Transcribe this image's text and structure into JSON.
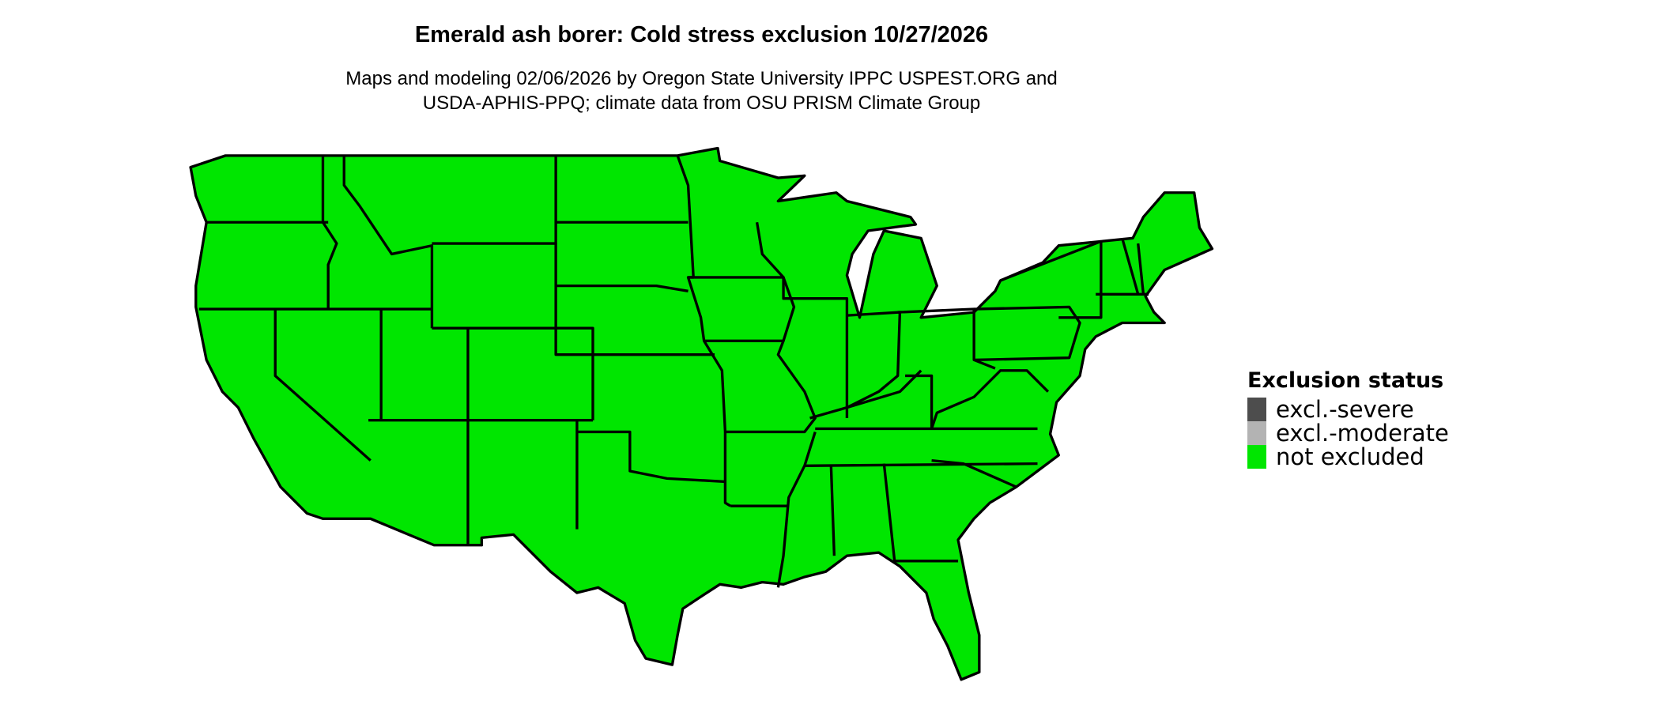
{
  "title": "Emerald ash borer: Cold stress exclusion 10/27/2026",
  "subtitle_lines": [
    "Maps and modeling 02/06/2026 by Oregon State University IPPC USPEST.ORG and",
    "USDA-APHIS-PPQ; climate data from OSU PRISM Climate Group"
  ],
  "map": {
    "region": "Conterminous United States",
    "fill_status": "not excluded",
    "fill_color": "#00e600",
    "border_color": "#000000"
  },
  "legend": {
    "title": "Exclusion status",
    "items": [
      {
        "label": "excl.-severe",
        "color": "#4d4d4d"
      },
      {
        "label": "excl.-moderate",
        "color": "#b3b3b3"
      },
      {
        "label": "not excluded",
        "color": "#00e600"
      }
    ]
  }
}
